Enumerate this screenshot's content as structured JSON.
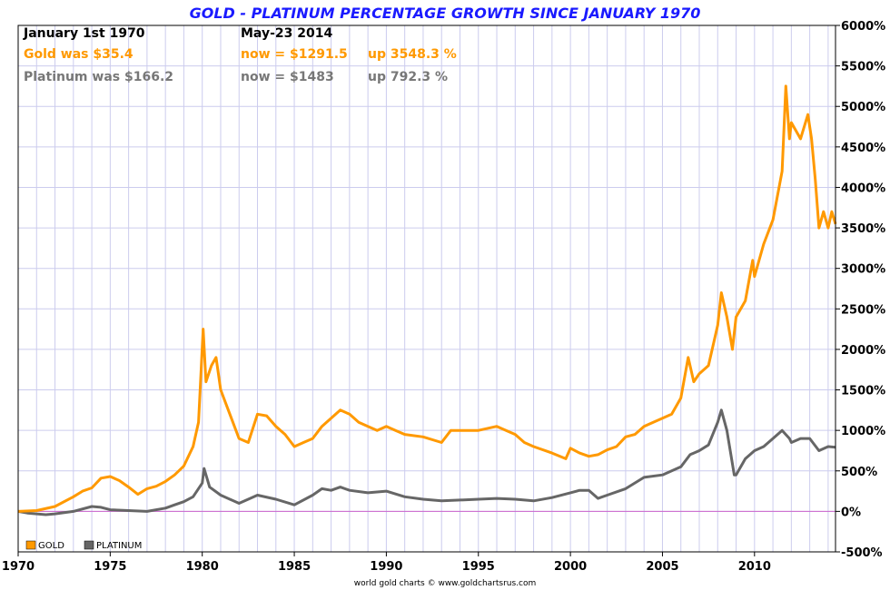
{
  "header": {
    "title": "GOLD - PLATINUM PERCENTAGE GROWTH SINCE JANUARY 1970",
    "row1": {
      "start_date": "January 1st 1970",
      "end_date": "May-23  2014"
    },
    "gold": {
      "was": "Gold was $35.4",
      "now": "now = $1291.5",
      "up": "up 3548.3 %"
    },
    "platinum": {
      "was": "Platinum was $166.2",
      "now": "now = $1483",
      "up": "up 792.3 %"
    }
  },
  "legend": {
    "gold_label": "GOLD",
    "platinum_label": "PLATINUM"
  },
  "footer": "world gold charts © www.goldchartsrus.com",
  "colors": {
    "gold": "#ff9900",
    "platinum": "#666666",
    "zero_line": "#cc66cc",
    "grid": "#ccccee",
    "title": "#1a1aff"
  },
  "chart_data": {
    "type": "line",
    "title": "GOLD - PLATINUM PERCENTAGE GROWTH SINCE JANUARY 1970",
    "xlabel": "",
    "ylabel": "",
    "xlim": [
      1970,
      2014.4
    ],
    "ylim": [
      -500,
      6000
    ],
    "x_ticks": [
      "1970",
      "1975",
      "1980",
      "1985",
      "1990",
      "1995",
      "2000",
      "2005",
      "2010"
    ],
    "y_ticks": [
      "6000%",
      "5500%",
      "5000%",
      "4500%",
      "4000%",
      "3500%",
      "3000%",
      "2500%",
      "2000%",
      "1500%",
      "1000%",
      "500%",
      "0%",
      "-500%"
    ],
    "grid": true,
    "legend_position": "bottom-left",
    "series": [
      {
        "name": "GOLD",
        "color": "#ff9900",
        "points": [
          [
            1970.0,
            0
          ],
          [
            1971.0,
            10
          ],
          [
            1972.0,
            60
          ],
          [
            1973.0,
            180
          ],
          [
            1973.5,
            250
          ],
          [
            1974.0,
            290
          ],
          [
            1974.5,
            410
          ],
          [
            1975.0,
            430
          ],
          [
            1975.5,
            380
          ],
          [
            1976.0,
            300
          ],
          [
            1976.5,
            210
          ],
          [
            1977.0,
            280
          ],
          [
            1977.5,
            310
          ],
          [
            1978.0,
            370
          ],
          [
            1978.5,
            450
          ],
          [
            1979.0,
            560
          ],
          [
            1979.5,
            800
          ],
          [
            1979.8,
            1100
          ],
          [
            1980.05,
            2250
          ],
          [
            1980.2,
            1600
          ],
          [
            1980.5,
            1800
          ],
          [
            1980.75,
            1900
          ],
          [
            1981.0,
            1500
          ],
          [
            1981.5,
            1200
          ],
          [
            1982.0,
            900
          ],
          [
            1982.5,
            850
          ],
          [
            1983.0,
            1200
          ],
          [
            1983.5,
            1180
          ],
          [
            1984.0,
            1050
          ],
          [
            1984.5,
            950
          ],
          [
            1985.0,
            800
          ],
          [
            1985.5,
            850
          ],
          [
            1986.0,
            900
          ],
          [
            1986.5,
            1050
          ],
          [
            1987.0,
            1150
          ],
          [
            1987.5,
            1250
          ],
          [
            1988.0,
            1200
          ],
          [
            1988.5,
            1100
          ],
          [
            1989.0,
            1050
          ],
          [
            1989.5,
            1000
          ],
          [
            1990.0,
            1050
          ],
          [
            1990.5,
            1000
          ],
          [
            1991.0,
            950
          ],
          [
            1992.0,
            920
          ],
          [
            1993.0,
            850
          ],
          [
            1993.5,
            1000
          ],
          [
            1994.0,
            1000
          ],
          [
            1995.0,
            1000
          ],
          [
            1996.0,
            1050
          ],
          [
            1996.5,
            1000
          ],
          [
            1997.0,
            950
          ],
          [
            1997.5,
            850
          ],
          [
            1998.0,
            800
          ],
          [
            1999.0,
            720
          ],
          [
            1999.75,
            650
          ],
          [
            2000.0,
            780
          ],
          [
            2000.5,
            720
          ],
          [
            2001.0,
            680
          ],
          [
            2001.5,
            700
          ],
          [
            2002.0,
            760
          ],
          [
            2002.5,
            800
          ],
          [
            2003.0,
            920
          ],
          [
            2003.5,
            950
          ],
          [
            2004.0,
            1050
          ],
          [
            2004.5,
            1100
          ],
          [
            2005.0,
            1150
          ],
          [
            2005.5,
            1200
          ],
          [
            2006.0,
            1400
          ],
          [
            2006.4,
            1900
          ],
          [
            2006.7,
            1600
          ],
          [
            2007.0,
            1700
          ],
          [
            2007.5,
            1800
          ],
          [
            2008.0,
            2300
          ],
          [
            2008.2,
            2700
          ],
          [
            2008.5,
            2400
          ],
          [
            2008.8,
            2000
          ],
          [
            2009.0,
            2400
          ],
          [
            2009.5,
            2600
          ],
          [
            2009.9,
            3100
          ],
          [
            2010.0,
            2900
          ],
          [
            2010.5,
            3300
          ],
          [
            2011.0,
            3600
          ],
          [
            2011.5,
            4200
          ],
          [
            2011.7,
            5250
          ],
          [
            2011.9,
            4600
          ],
          [
            2012.0,
            4800
          ],
          [
            2012.5,
            4600
          ],
          [
            2012.9,
            4900
          ],
          [
            2013.1,
            4600
          ],
          [
            2013.3,
            4100
          ],
          [
            2013.5,
            3500
          ],
          [
            2013.75,
            3700
          ],
          [
            2014.0,
            3500
          ],
          [
            2014.2,
            3700
          ],
          [
            2014.4,
            3548
          ]
        ]
      },
      {
        "name": "PLATINUM",
        "color": "#666666",
        "points": [
          [
            1970.0,
            0
          ],
          [
            1970.5,
            -20
          ],
          [
            1971.0,
            -30
          ],
          [
            1971.5,
            -40
          ],
          [
            1972.0,
            -30
          ],
          [
            1973.0,
            0
          ],
          [
            1974.0,
            60
          ],
          [
            1974.5,
            50
          ],
          [
            1975.0,
            20
          ],
          [
            1976.0,
            10
          ],
          [
            1977.0,
            0
          ],
          [
            1978.0,
            40
          ],
          [
            1978.5,
            80
          ],
          [
            1979.0,
            120
          ],
          [
            1979.5,
            180
          ],
          [
            1980.0,
            350
          ],
          [
            1980.1,
            530
          ],
          [
            1980.4,
            300
          ],
          [
            1981.0,
            200
          ],
          [
            1982.0,
            100
          ],
          [
            1982.5,
            150
          ],
          [
            1983.0,
            200
          ],
          [
            1984.0,
            150
          ],
          [
            1985.0,
            80
          ],
          [
            1986.0,
            200
          ],
          [
            1986.5,
            280
          ],
          [
            1987.0,
            260
          ],
          [
            1987.5,
            300
          ],
          [
            1988.0,
            260
          ],
          [
            1989.0,
            230
          ],
          [
            1990.0,
            250
          ],
          [
            1991.0,
            180
          ],
          [
            1992.0,
            150
          ],
          [
            1993.0,
            130
          ],
          [
            1994.0,
            140
          ],
          [
            1995.0,
            150
          ],
          [
            1996.0,
            160
          ],
          [
            1997.0,
            150
          ],
          [
            1998.0,
            130
          ],
          [
            1999.0,
            170
          ],
          [
            2000.0,
            230
          ],
          [
            2000.5,
            260
          ],
          [
            2001.0,
            260
          ],
          [
            2001.5,
            160
          ],
          [
            2002.0,
            200
          ],
          [
            2003.0,
            280
          ],
          [
            2004.0,
            420
          ],
          [
            2005.0,
            450
          ],
          [
            2006.0,
            550
          ],
          [
            2006.5,
            700
          ],
          [
            2007.0,
            750
          ],
          [
            2007.5,
            820
          ],
          [
            2008.0,
            1100
          ],
          [
            2008.2,
            1250
          ],
          [
            2008.5,
            1000
          ],
          [
            2008.9,
            450
          ],
          [
            2009.0,
            450
          ],
          [
            2009.5,
            650
          ],
          [
            2010.0,
            750
          ],
          [
            2010.5,
            800
          ],
          [
            2011.0,
            900
          ],
          [
            2011.5,
            1000
          ],
          [
            2011.9,
            900
          ],
          [
            2012.0,
            850
          ],
          [
            2012.5,
            900
          ],
          [
            2013.0,
            900
          ],
          [
            2013.5,
            750
          ],
          [
            2014.0,
            800
          ],
          [
            2014.4,
            792
          ]
        ]
      }
    ]
  }
}
